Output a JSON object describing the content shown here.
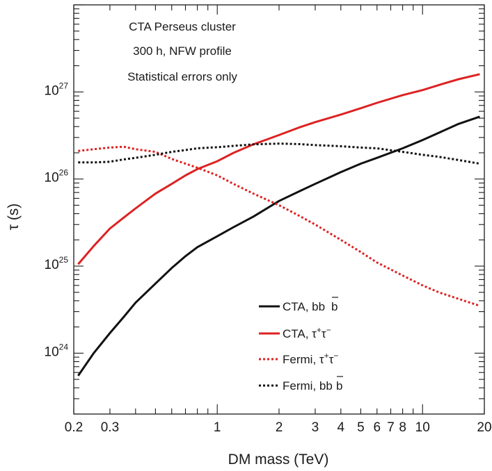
{
  "chart_data": {
    "type": "line",
    "xlabel": "DM mass (TeV)",
    "ylabel": "τ (s)",
    "xscale": "log",
    "yscale": "log",
    "xlim": [
      0.2,
      20
    ],
    "ylim": [
      2e+23,
      1e+28
    ],
    "x_ticks": [
      {
        "value": 0.2,
        "label": "0.2"
      },
      {
        "value": 0.3,
        "label": "0.3"
      },
      {
        "value": 1,
        "label": "1"
      },
      {
        "value": 2,
        "label": "2"
      },
      {
        "value": 3,
        "label": "3"
      },
      {
        "value": 4,
        "label": "4"
      },
      {
        "value": 5,
        "label": "5"
      },
      {
        "value": 6,
        "label": "6"
      },
      {
        "value": 7,
        "label": "7"
      },
      {
        "value": 8,
        "label": "8"
      },
      {
        "value": 10,
        "label": "10"
      },
      {
        "value": 20,
        "label": "20"
      }
    ],
    "y_ticks": [
      {
        "value": 1e+24,
        "base": "10",
        "exp": "24"
      },
      {
        "value": 1e+25,
        "base": "10",
        "exp": "25"
      },
      {
        "value": 1e+26,
        "base": "10",
        "exp": "26"
      },
      {
        "value": 1e+27,
        "base": "10",
        "exp": "27"
      }
    ],
    "annotations": [
      "CTA Perseus cluster",
      "300 h, NFW profile",
      "Statistical errors only"
    ],
    "legend_position": "bottom-right",
    "series": [
      {
        "name": "CTA, bb̄",
        "label_main": "CTA, bb",
        "label_bar": "b",
        "color": "#111111",
        "style": "solid",
        "x": [
          0.21,
          0.25,
          0.3,
          0.35,
          0.4,
          0.5,
          0.6,
          0.7,
          0.8,
          1.0,
          1.2,
          1.5,
          2.0,
          2.5,
          3.0,
          4.0,
          5.0,
          6.0,
          8.0,
          10.0,
          12.0,
          15.0,
          19.0
        ],
        "y": [
          5.5e+23,
          1e+24,
          1.7e+24,
          2.6e+24,
          3.8e+24,
          6.3e+24,
          9.5e+24,
          1.3e+25,
          1.65e+25,
          2.2e+25,
          2.8e+25,
          3.7e+25,
          5.6e+25,
          7.2e+25,
          8.8e+25,
          1.2e+26,
          1.5e+26,
          1.75e+26,
          2.25e+26,
          2.8e+26,
          3.4e+26,
          4.3e+26,
          5.2e+26
        ]
      },
      {
        "name": "CTA, τ⁺τ⁻",
        "label_main": "CTA, τ",
        "label_sup1": "+",
        "label_mid": "τ",
        "label_sup2": "−",
        "color": "#dd2222",
        "style": "solid",
        "x": [
          0.21,
          0.25,
          0.3,
          0.35,
          0.4,
          0.5,
          0.6,
          0.7,
          0.8,
          1.0,
          1.2,
          1.5,
          2.0,
          2.5,
          3.0,
          4.0,
          5.0,
          6.0,
          8.0,
          10.0,
          12.0,
          15.0,
          19.0
        ],
        "y": [
          1.05e+25,
          1.7e+25,
          2.7e+25,
          3.6e+25,
          4.6e+25,
          6.8e+25,
          8.8e+25,
          1.1e+26,
          1.3e+26,
          1.6e+26,
          2e+26,
          2.5e+26,
          3.2e+26,
          3.9e+26,
          4.5e+26,
          5.5e+26,
          6.5e+26,
          7.5e+26,
          9.2e+26,
          1.05e+27,
          1.2e+27,
          1.4e+27,
          1.6e+27
        ]
      },
      {
        "name": "Fermi, τ⁺τ⁻",
        "label_main": "Fermi, τ",
        "label_sup1": "+",
        "label_mid": "τ",
        "label_sup2": "−",
        "color": "#dd2222",
        "style": "dotted",
        "x": [
          0.21,
          0.25,
          0.3,
          0.35,
          0.4,
          0.5,
          0.6,
          0.7,
          0.8,
          1.0,
          1.2,
          1.5,
          2.0,
          2.5,
          3.0,
          4.0,
          5.0,
          6.0,
          8.0,
          10.0,
          12.0,
          15.0,
          19.0
        ],
        "y": [
          2.1e+26,
          2.2e+26,
          2.3e+26,
          2.35e+26,
          2.2e+26,
          2.05e+26,
          1.7e+26,
          1.5e+26,
          1.35e+26,
          1.1e+26,
          8.8e+25,
          6.8e+25,
          5e+25,
          3.8e+25,
          3e+25,
          2e+25,
          1.45e+25,
          1.1e+25,
          7.8e+24,
          6e+24,
          5e+24,
          4.2e+24,
          3.5e+24
        ]
      },
      {
        "name": "Fermi, bb̄",
        "label_main": "Fermi, bb",
        "label_bar": "b",
        "color": "#111111",
        "style": "dotted",
        "x": [
          0.21,
          0.25,
          0.3,
          0.35,
          0.4,
          0.5,
          0.6,
          0.7,
          0.8,
          1.0,
          1.2,
          1.5,
          2.0,
          2.5,
          3.0,
          4.0,
          5.0,
          6.0,
          8.0,
          10.0,
          12.0,
          15.0,
          19.0
        ],
        "y": [
          1.55e+26,
          1.55e+26,
          1.58e+26,
          1.68e+26,
          1.75e+26,
          1.9e+26,
          2.05e+26,
          2.15e+26,
          2.25e+26,
          2.32e+26,
          2.4e+26,
          2.5e+26,
          2.55e+26,
          2.52e+26,
          2.45e+26,
          2.38e+26,
          2.3e+26,
          2.25e+26,
          2.05e+26,
          1.9e+26,
          1.8e+26,
          1.65e+26,
          1.5e+26
        ]
      }
    ]
  }
}
